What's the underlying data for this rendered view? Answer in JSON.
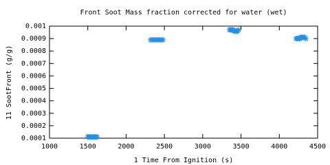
{
  "chart_data": {
    "type": "scatter",
    "title": "Front Soot Mass fraction corrected for water (wet)",
    "x_label": "1 Time From Ignition (s)",
    "y_label": "11 SootFront (g/g)",
    "color": "#1f8ff0",
    "x": [
      1500,
      1515,
      1530,
      1545,
      1560,
      1575,
      1590,
      1605,
      1620,
      2320,
      2340,
      2360,
      2380,
      2400,
      2420,
      2440,
      2460,
      2480,
      3350,
      3365,
      3380,
      3395,
      3410,
      3425,
      3440,
      3455,
      3470,
      4220,
      4235,
      4250,
      4265,
      4280,
      4295,
      4310,
      4325,
      4345
    ],
    "values": [
      0.00011,
      0.00011,
      0.00011,
      0.00011,
      0.00011,
      0.00011,
      0.00011,
      0.00011,
      0.00011,
      0.00089,
      0.00089,
      0.00089,
      0.00089,
      0.00089,
      0.00089,
      0.00089,
      0.00089,
      0.00089,
      0.00097,
      0.00097,
      0.00097,
      0.00097,
      0.00096,
      0.00096,
      0.00096,
      0.00096,
      0.00097,
      0.0009,
      0.0009,
      0.0009,
      0.0009,
      0.00091,
      0.00091,
      0.00091,
      0.00091,
      0.0009
    ],
    "xlim": [
      1000,
      4500
    ],
    "ylim": [
      0.0001,
      0.001
    ],
    "xticks": [
      1000,
      1500,
      2000,
      2500,
      3000,
      3500,
      4000,
      4500
    ],
    "yticks": [
      0.0001,
      0.0002,
      0.0003,
      0.0004,
      0.0005,
      0.0006,
      0.0007,
      0.0008,
      0.0009,
      0.001
    ],
    "grid": false
  }
}
